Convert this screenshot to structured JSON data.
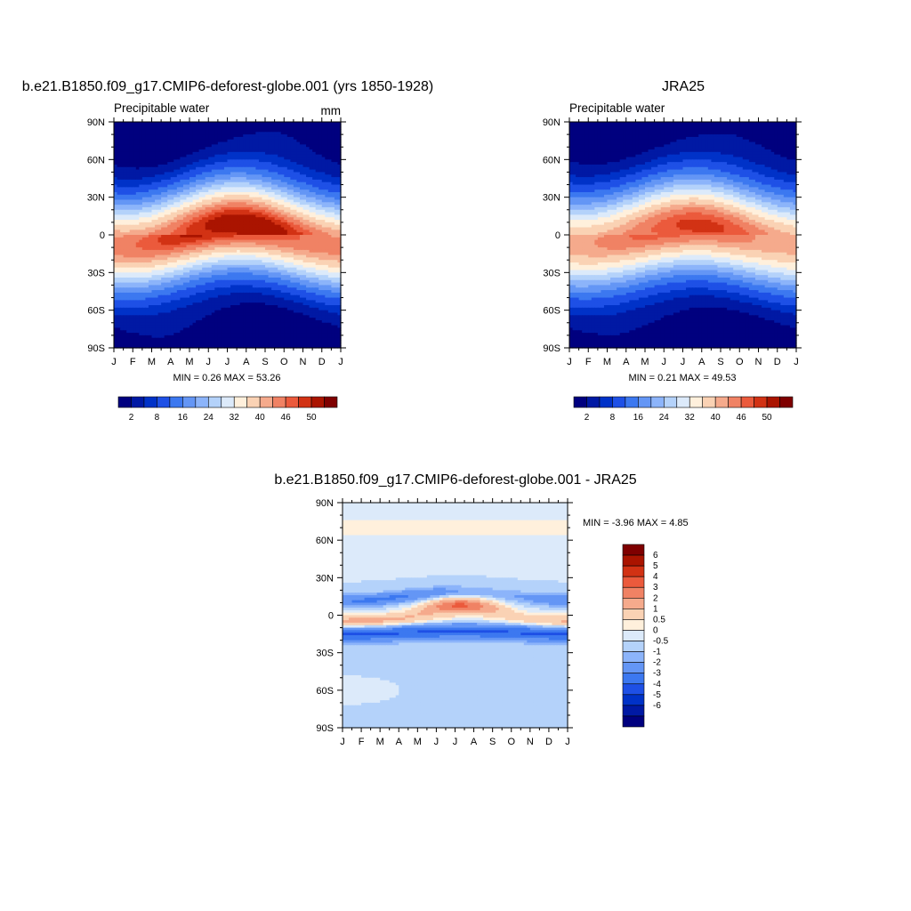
{
  "chart_data": [
    {
      "type": "heatmap",
      "title": "b.e21.B1850.f09_g17.CMIP6-deforest-globe.001 (yrs 1850-1928)",
      "left_label": "Precipitable water",
      "units": "mm",
      "x_tick_labels": [
        "J",
        "F",
        "M",
        "A",
        "M",
        "J",
        "J",
        "A",
        "S",
        "O",
        "N",
        "D",
        "J"
      ],
      "y_tick_labels": [
        "90N",
        "60N",
        "30N",
        "0",
        "30S",
        "60S",
        "90S"
      ],
      "ylim": [
        -90,
        90
      ],
      "stats": "MIN =   0.26 MAX =  53.26",
      "colorbar_labels": [
        "2",
        "8",
        "16",
        "24",
        "32",
        "40",
        "46",
        "50"
      ],
      "levels": [
        2,
        5,
        8,
        12,
        16,
        20,
        24,
        28,
        32,
        36,
        40,
        43,
        46,
        48,
        50
      ],
      "colors": [
        "#00007f",
        "#0019a4",
        "#0032c8",
        "#1e50e6",
        "#3c78f0",
        "#6496f5",
        "#8cb4fa",
        "#b4d2fa",
        "#dceafa",
        "#fff0dc",
        "#fad2b4",
        "#f5aa8c",
        "#f08264",
        "#eb5a3c",
        "#d23214",
        "#aa1400",
        "#7f0000"
      ],
      "field": {
        "peak": 52,
        "itcz_amplitude_deg": 9,
        "itcz_peak_month": 7.3,
        "width_deg": 26,
        "hemispheric_offset": 2.5
      }
    },
    {
      "type": "heatmap",
      "title": "JRA25",
      "left_label": "Precipitable water",
      "x_tick_labels": [
        "J",
        "F",
        "M",
        "A",
        "M",
        "J",
        "J",
        "A",
        "S",
        "O",
        "N",
        "D",
        "J"
      ],
      "y_tick_labels": [
        "90N",
        "60N",
        "30N",
        "0",
        "30S",
        "60S",
        "90S"
      ],
      "ylim": [
        -90,
        90
      ],
      "stats": "MIN =   0.21 MAX =  49.53",
      "colorbar_labels": [
        "2",
        "8",
        "16",
        "24",
        "32",
        "40",
        "46",
        "50"
      ],
      "levels": [
        2,
        5,
        8,
        12,
        16,
        20,
        24,
        28,
        32,
        36,
        40,
        43,
        46,
        48,
        50
      ],
      "colors": [
        "#00007f",
        "#0019a4",
        "#0032c8",
        "#1e50e6",
        "#3c78f0",
        "#6496f5",
        "#8cb4fa",
        "#b4d2fa",
        "#dceafa",
        "#fff0dc",
        "#fad2b4",
        "#f5aa8c",
        "#f08264",
        "#eb5a3c",
        "#d23214",
        "#aa1400",
        "#7f0000"
      ],
      "field": {
        "peak": 48.5,
        "itcz_amplitude_deg": 8,
        "itcz_peak_month": 7.3,
        "width_deg": 27,
        "hemispheric_offset": 2.0
      }
    },
    {
      "type": "heatmap",
      "title": "b.e21.B1850.f09_g17.CMIP6-deforest-globe.001 - JRA25",
      "x_tick_labels": [
        "J",
        "F",
        "M",
        "A",
        "M",
        "J",
        "J",
        "A",
        "S",
        "O",
        "N",
        "D",
        "J"
      ],
      "y_tick_labels": [
        "90N",
        "60N",
        "30N",
        "0",
        "30S",
        "60S",
        "90S"
      ],
      "ylim": [
        -90,
        90
      ],
      "stats": "MIN =  -3.96 MAX =   4.85",
      "colorbar_labels": [
        "6",
        "5",
        "4",
        "3",
        "2",
        "1",
        "0.5",
        "0",
        "-0.5",
        "-1",
        "-2",
        "-3",
        "-4",
        "-5",
        "-6"
      ],
      "levels": [
        -6,
        -5,
        -4,
        -3,
        -2,
        -1,
        -0.5,
        0,
        0.5,
        1,
        2,
        3,
        4,
        5,
        6
      ],
      "colors": [
        "#00007f",
        "#0019a4",
        "#0032c8",
        "#1e50e6",
        "#3c78f0",
        "#6496f5",
        "#8cb4fa",
        "#b4d2fa",
        "#dceafa",
        "#fff0dc",
        "#fad2b4",
        "#f5aa8c",
        "#f08264",
        "#eb5a3c",
        "#d23214",
        "#aa1400",
        "#7f0000"
      ]
    }
  ]
}
